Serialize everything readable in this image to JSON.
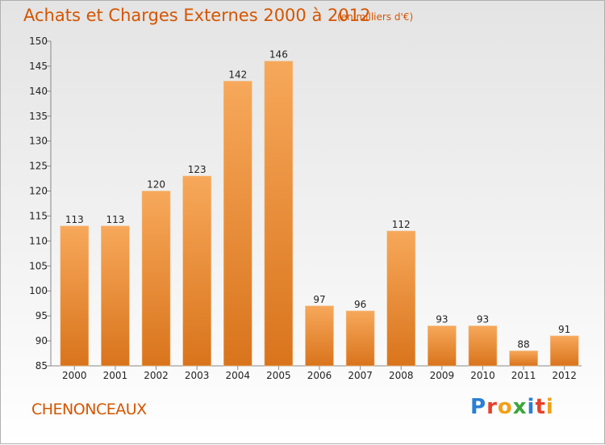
{
  "header": {
    "title": "Achats et Charges Externes 2000 à 2012",
    "subtitle": "(en milliers d'€)"
  },
  "footer": {
    "commune": "CHENONCEAUX",
    "logo": "Proxiti"
  },
  "colors": {
    "accent": "#d45500",
    "bar_top": "#f7a85a",
    "bar_bottom": "#d9741c"
  },
  "chart_data": {
    "type": "bar",
    "categories": [
      "2000",
      "2001",
      "2002",
      "2003",
      "2004",
      "2005",
      "2006",
      "2007",
      "2008",
      "2009",
      "2010",
      "2011",
      "2012"
    ],
    "values": [
      113,
      113,
      120,
      123,
      142,
      146,
      97,
      96,
      112,
      93,
      93,
      88,
      91
    ],
    "title": "Achats et Charges Externes 2000 à 2012",
    "ylim": [
      85,
      150
    ],
    "yticks": [
      85,
      90,
      95,
      100,
      105,
      110,
      115,
      120,
      125,
      130,
      135,
      140,
      145,
      150
    ],
    "grid": false,
    "legend": "none"
  }
}
